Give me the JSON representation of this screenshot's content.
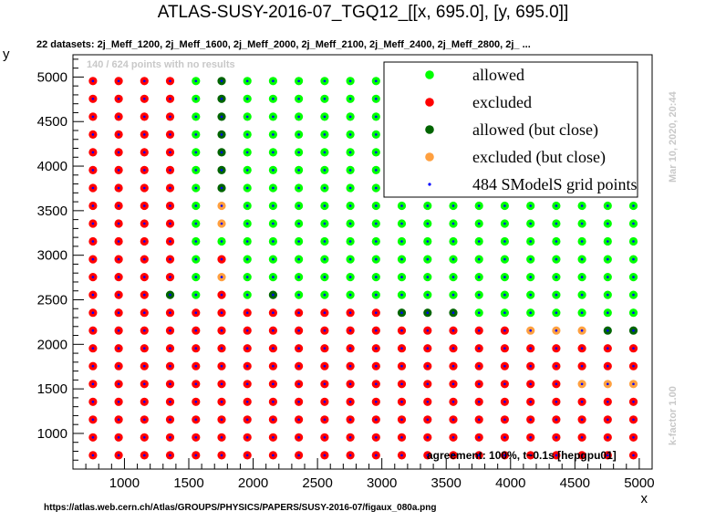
{
  "header": {
    "title": "ATLAS-SUSY-2016-07_TGQ12_[[x, 695.0], [y, 695.0]]",
    "datasets": "22 datasets: 2j_Meff_1200, 2j_Meff_1600, 2j_Meff_2000, 2j_Meff_2100, 2j_Meff_2400, 2j_Meff_2800, 2j_ ...",
    "no_results": "140 / 624 points with no results"
  },
  "side": {
    "timestamp": "Mar 10, 2020, 20:44",
    "kfactor": "k-factor 1.00"
  },
  "footer": {
    "agreement": "agreement: 100%, t~0.1s [hepgpu01]",
    "url": "https://atlas.web.cern.ch/Atlas/GROUPS/PHYSICS/PAPERS/SUSY-2016-07/figaux_080a.png"
  },
  "colors": {
    "allowed": "#00ff00",
    "excluded": "#ff0000",
    "allowed_close": "#006400",
    "excluded_close": "#ffa040",
    "grid_point": "#0000ff",
    "no_result": "#c4ecc4"
  },
  "legend": {
    "items": [
      {
        "key": "allowed",
        "label": "allowed"
      },
      {
        "key": "excluded",
        "label": "excluded"
      },
      {
        "key": "allowed_close",
        "label": "allowed (but close)"
      },
      {
        "key": "excluded_close",
        "label": "excluded (but close)"
      },
      {
        "key": "grid_point",
        "label": "484 SModelS grid points"
      }
    ]
  },
  "chart_data": {
    "type": "scatter",
    "xlabel": "x",
    "ylabel": "y",
    "xlim": [
      600,
      5100
    ],
    "ylim": [
      600,
      5250
    ],
    "xticks": [
      1000,
      1500,
      2000,
      2500,
      3000,
      3500,
      4000,
      4500,
      5000
    ],
    "yticks": [
      1000,
      1500,
      2000,
      2500,
      3000,
      3500,
      4000,
      4500,
      5000
    ],
    "legend_position": "top-right",
    "grid": false,
    "x_values": [
      755,
      955,
      1155,
      1355,
      1555,
      1755,
      1955,
      2155,
      2355,
      2555,
      2755,
      2955,
      3155,
      3355,
      3555,
      3755,
      3955,
      4155,
      4355,
      4555,
      4755,
      4955
    ],
    "y_values": [
      755,
      955,
      1155,
      1355,
      1555,
      1755,
      1955,
      2155,
      2355,
      2555,
      2755,
      2955,
      3155,
      3355,
      3555,
      3755,
      3955,
      4155,
      4355,
      4555,
      4755,
      4955
    ],
    "status_codes": {
      "E": "excluded",
      "A": "allowed",
      "D": "allowed (but close)",
      "O": "excluded (but close)",
      "N": "no result"
    },
    "rows_top_to_bottom": [
      "EEEEADAAAAAAANNNNNNNNN",
      "EEEEADAAAAAAANNNNNNNNN",
      "EEEEADAAAAAAANNNNNNNNN",
      "EEEEADAAAAAAANNNNNNNNN",
      "EEEEADAAAAAAANNNNNNNNN",
      "EEEEADAAAAAAANNNNNNNNN",
      "EEEEADAAAAAAANNNNNNNNN",
      "EEEEAOAAAAAAAAAAAAAAAA",
      "EEEEAOAAAAAAAAAAAAAAAA",
      "EEEEAAAAAAAAAAAAAAAAAA",
      "EEEEAEAAAAAAAAAAAAAAAA",
      "EEEEAOAAAAAAAAAAAAAAAA",
      "EEEDAEADAAAAAAAAAAAAAA",
      "EEEEEEEEEEEEDDDAAAAAAA",
      "EEEEEEEEEEEEEEEEEOOODD",
      "EEEEEEEEEEEEEEEEEEEEEE",
      "EEEEEEEEEEEEEEEEEEEEEE",
      "EEEEEEEEEEEEEEEEEEEOOO",
      "EEEEEEEEEEEEEEEEEEEEEE",
      "EEEEEEEEEEEEEEEEEEEEEE",
      "EEEEEEEEEEEEEEEEEEEEEE",
      "EEEEEEEEEEEEEEEEEEEEEE"
    ]
  }
}
